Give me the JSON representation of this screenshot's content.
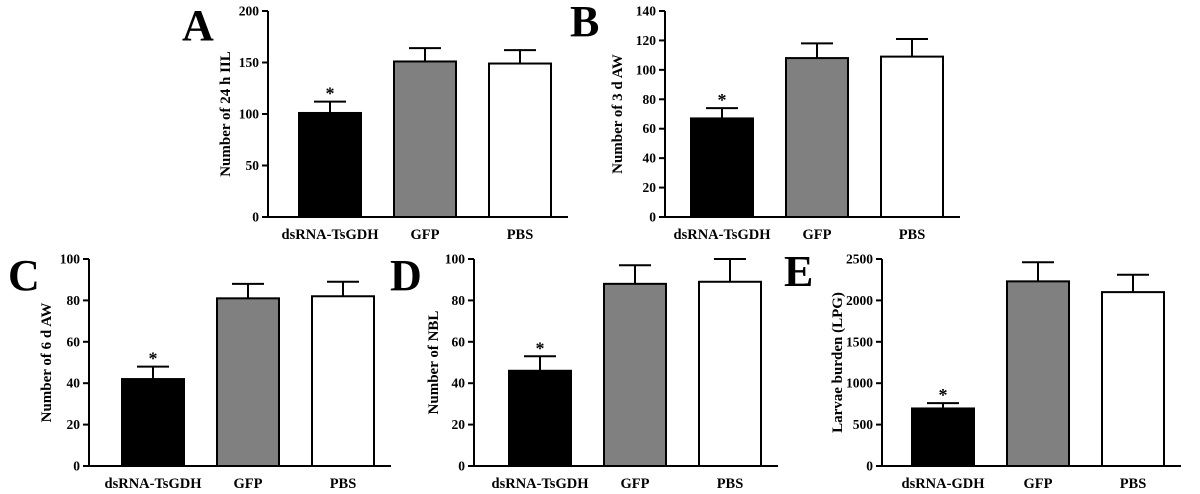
{
  "chart_data": [
    {
      "type": "bar",
      "panel_label": "A",
      "ylabel": "Number of 24 h IIL",
      "ylim": [
        0,
        200
      ],
      "yticks": [
        0,
        50,
        100,
        150,
        200
      ],
      "categories": [
        "dsRNA-TsGDH",
        "GFP",
        "PBS"
      ],
      "values": [
        101,
        151,
        149
      ],
      "errors": [
        11,
        13,
        13
      ],
      "significance": [
        "*",
        "",
        ""
      ],
      "bar_colors": [
        "#000000",
        "#808080",
        "#ffffff"
      ]
    },
    {
      "type": "bar",
      "panel_label": "B",
      "ylabel": "Number of 3 d AW",
      "ylim": [
        0,
        140
      ],
      "yticks": [
        0,
        20,
        40,
        60,
        80,
        100,
        120,
        140
      ],
      "categories": [
        "dsRNA-TsGDH",
        "GFP",
        "PBS"
      ],
      "values": [
        67,
        108,
        109
      ],
      "errors": [
        7,
        10,
        12
      ],
      "significance": [
        "*",
        "",
        ""
      ],
      "bar_colors": [
        "#000000",
        "#808080",
        "#ffffff"
      ]
    },
    {
      "type": "bar",
      "panel_label": "C",
      "ylabel": "Number of 6 d AW",
      "ylim": [
        0,
        100
      ],
      "yticks": [
        0,
        20,
        40,
        60,
        80,
        100
      ],
      "categories": [
        "dsRNA-TsGDH",
        "GFP",
        "PBS"
      ],
      "values": [
        42,
        81,
        82
      ],
      "errors": [
        6,
        7,
        7
      ],
      "significance": [
        "*",
        "",
        ""
      ],
      "bar_colors": [
        "#000000",
        "#808080",
        "#ffffff"
      ]
    },
    {
      "type": "bar",
      "panel_label": "D",
      "ylabel": "Number of NBL",
      "ylim": [
        0,
        100
      ],
      "yticks": [
        0,
        20,
        40,
        60,
        80,
        100
      ],
      "categories": [
        "dsRNA-TsGDH",
        "GFP",
        "PBS"
      ],
      "values": [
        46,
        88,
        89
      ],
      "errors": [
        7,
        9,
        11
      ],
      "significance": [
        "*",
        "",
        ""
      ],
      "bar_colors": [
        "#000000",
        "#808080",
        "#ffffff"
      ]
    },
    {
      "type": "bar",
      "panel_label": "E",
      "ylabel": "Larvae burden (LPG)",
      "ylim": [
        0,
        2500
      ],
      "yticks": [
        0,
        500,
        1000,
        1500,
        2000,
        2500
      ],
      "categories": [
        "dsRNA-GDH",
        "GFP",
        "PBS"
      ],
      "values": [
        695,
        2230,
        2100
      ],
      "errors": [
        65,
        230,
        210
      ],
      "significance": [
        "*",
        "",
        ""
      ],
      "bar_colors": [
        "#000000",
        "#808080",
        "#ffffff"
      ]
    }
  ]
}
